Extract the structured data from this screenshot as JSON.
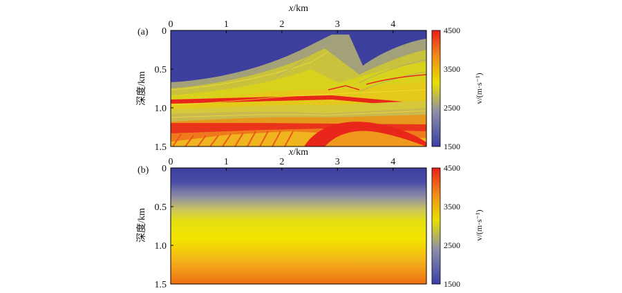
{
  "chart_data": [
    {
      "panel": "(a)",
      "type": "heatmap",
      "xlabel_var": "x",
      "xlabel_unit": "/km",
      "ylabel": "深度/km",
      "x_ticks": [
        "0",
        "1",
        "2",
        "3",
        "4"
      ],
      "y_ticks": [
        "0",
        "0.5",
        "1.0",
        "1.5"
      ],
      "xlim": [
        0,
        4.6
      ],
      "ylim": [
        0,
        1.5
      ],
      "colorbar": {
        "label": "v/(m·s⁻¹)",
        "ticks": [
          "1500",
          "2500",
          "3500",
          "4500"
        ],
        "range": [
          1500,
          4500
        ],
        "colors": [
          "#3b3fa6",
          "#8d8fa8",
          "#e8e000",
          "#f08a1a",
          "#e8201a"
        ]
      }
    },
    {
      "panel": "(b)",
      "type": "heatmap",
      "xlabel_var": "x",
      "xlabel_unit": "/km",
      "ylabel": "深度/km",
      "x_ticks": [
        "0",
        "1",
        "2",
        "3",
        "4"
      ],
      "y_ticks": [
        "0",
        "0.5",
        "1.0",
        "1.5"
      ],
      "xlim": [
        0,
        4.6
      ],
      "ylim": [
        0,
        1.5
      ],
      "colorbar": {
        "label": "v/(m·s⁻¹)",
        "ticks": [
          "1500",
          "2500",
          "3500",
          "4500"
        ],
        "range": [
          1500,
          4500
        ],
        "colors": [
          "#3b3fa6",
          "#8d8fa8",
          "#e8e000",
          "#f08a1a",
          "#e8201a"
        ]
      }
    }
  ]
}
